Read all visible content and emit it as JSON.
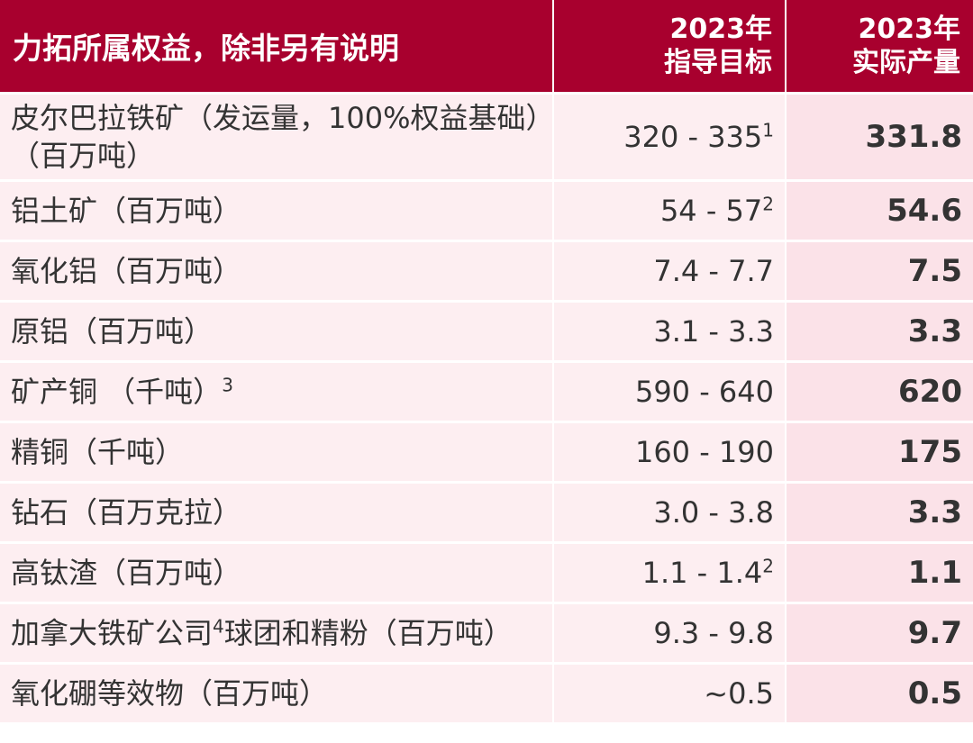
{
  "header": {
    "col1": "力拓所属权益，除非另有说明",
    "col2_line1": "2023年",
    "col2_line2": "指导目标",
    "col3_line1": "2023年",
    "col3_line2": "实际产量"
  },
  "rows": [
    {
      "item": "皮尔巴拉铁矿（发运量，100%权益基础）（百万吨）",
      "item_sup": "",
      "guidance": "320 - 335",
      "guidance_sup": "1",
      "actual": "331.8"
    },
    {
      "item": "铝土矿（百万吨）",
      "item_sup": "",
      "guidance": "54 - 57",
      "guidance_sup": "2",
      "actual": "54.6"
    },
    {
      "item": "氧化铝（百万吨）",
      "item_sup": "",
      "guidance": "7.4 - 7.7",
      "guidance_sup": "",
      "actual": "7.5"
    },
    {
      "item": "原铝（百万吨）",
      "item_sup": "",
      "guidance": "3.1 - 3.3",
      "guidance_sup": "",
      "actual": "3.3"
    },
    {
      "item": "矿产铜 （千吨）",
      "item_sup": "3",
      "guidance": "590 - 640",
      "guidance_sup": "",
      "actual": "620"
    },
    {
      "item": "精铜（千吨）",
      "item_sup": "",
      "guidance": "160 - 190",
      "guidance_sup": "",
      "actual": "175"
    },
    {
      "item": "钻石（百万克拉）",
      "item_sup": "",
      "guidance": "3.0 - 3.8",
      "guidance_sup": "",
      "actual": "3.3"
    },
    {
      "item": "高钛渣（百万吨）",
      "item_sup": "",
      "guidance": "1.1 - 1.4",
      "guidance_sup": "2",
      "actual": "1.1"
    },
    {
      "item_a": "加拿大铁矿公司",
      "item_mid_sup": "4",
      "item_b": "球团和精粉（百万吨）",
      "guidance": "9.3 - 9.8",
      "guidance_sup": "",
      "actual": "9.7"
    },
    {
      "item": "氧化硼等效物（百万吨）",
      "item_sup": "",
      "guidance": "~0.5",
      "guidance_sup": "",
      "actual": "0.5"
    }
  ]
}
